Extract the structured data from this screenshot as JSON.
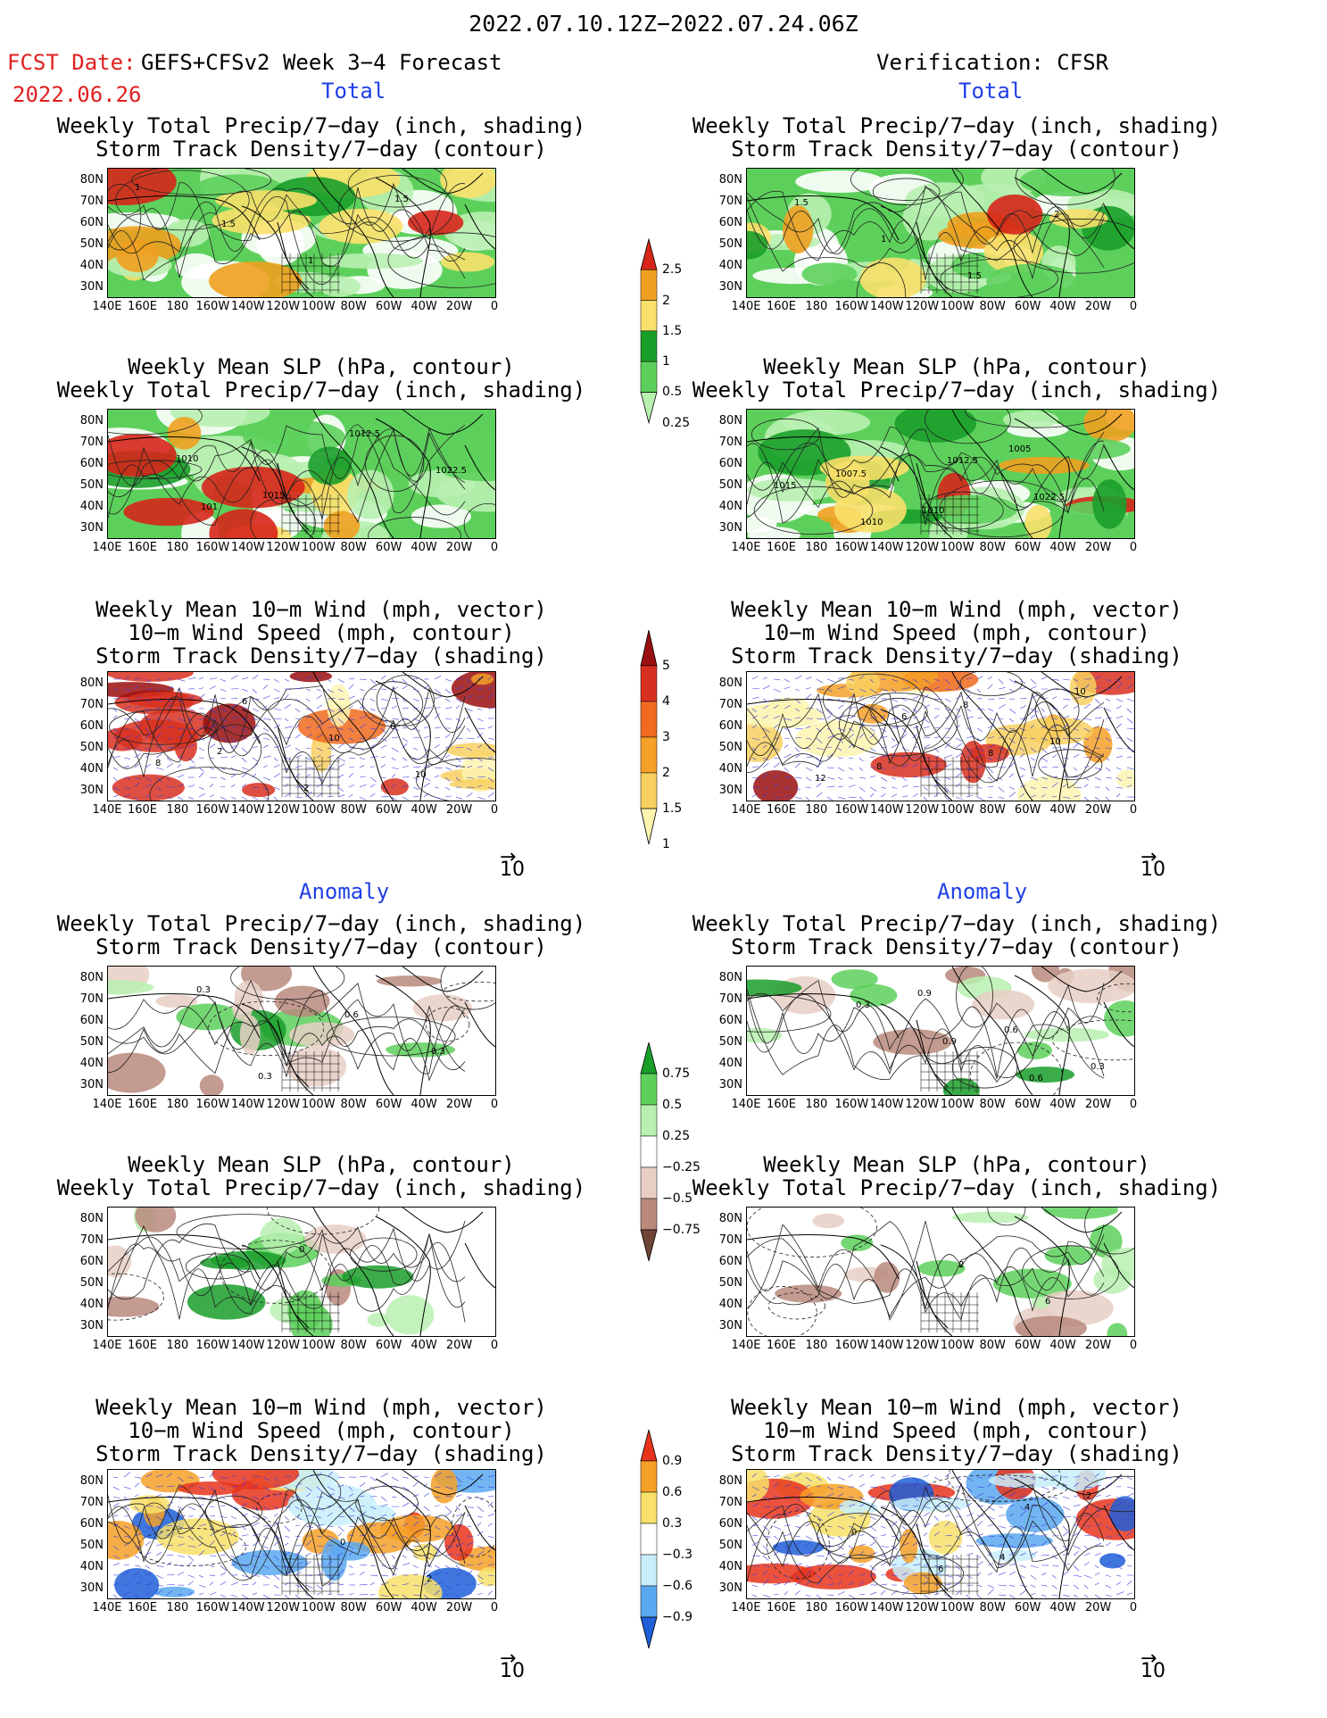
{
  "header": {
    "period": "2022.07.10.12Z−2022.07.24.06Z",
    "fcst_date_label": "FCST Date:",
    "fcst_model": "GEFS+CFSv2 Week 3−4 Forecast",
    "fcst_date": "2022.06.26",
    "verification": "Verification: CFSR"
  },
  "sections": {
    "total": "Total",
    "anomaly": "Anomaly"
  },
  "panel_titles": {
    "precip_storm": "Weekly Total Precip/7−day (inch, shading)\nStorm Track Density/7−day (contour)",
    "slp_precip": "Weekly Mean SLP (hPa, contour)\nWeekly Total Precip/7−day (inch, shading)",
    "wind_storm": "Weekly Mean 10−m Wind (mph, vector)\n10−m Wind Speed (mph, contour)\nStorm Track Density/7−day (shading)"
  },
  "axes": {
    "lat": [
      "80N",
      "70N",
      "60N",
      "50N",
      "40N",
      "30N"
    ],
    "lon": [
      "140E",
      "160E",
      "180",
      "160W",
      "140W",
      "120W",
      "100W",
      "80W",
      "60W",
      "40W",
      "20W",
      "0"
    ]
  },
  "vector_ref": "10",
  "colorbars": {
    "precip_total": {
      "labels": [
        "2.5",
        "2",
        "1.5",
        "1",
        "0.5",
        "0.25"
      ],
      "colors": [
        "#d7251a",
        "#f0a020",
        "#f8e06a",
        "#1a9e2a",
        "#5dd05c",
        "#b8f0b0"
      ]
    },
    "storm_total": {
      "labels": [
        "5",
        "4",
        "3",
        "2",
        "1.5",
        "1"
      ],
      "colors": [
        "#9a0f0f",
        "#d83020",
        "#f06a20",
        "#f5a028",
        "#f8d060",
        "#fdf4b0"
      ]
    },
    "precip_anom": {
      "labels": [
        "0.75",
        "0.5",
        "0.25",
        "−0.25",
        "−0.5",
        "−0.75"
      ],
      "colors": [
        "#1a9e2a",
        "#5dd05c",
        "#b8f0b0",
        "#ffffff",
        "#e8cfc6",
        "#b9897c",
        "#6e4535"
      ]
    },
    "storm_anom": {
      "labels": [
        "0.9",
        "0.6",
        "0.3",
        "−0.3",
        "−0.6",
        "−0.9"
      ],
      "colors": [
        "#e8341c",
        "#f5a028",
        "#f8e06a",
        "#ffffff",
        "#c8eefa",
        "#5aa8f0",
        "#1f5fd8"
      ]
    }
  },
  "contour_labels": {
    "l1": [
      "1",
      "1.5",
      "1",
      "1.5"
    ],
    "r1": [
      "1.5",
      "1",
      "1.5",
      "2"
    ],
    "l2": [
      "1010",
      "1015",
      "1012.5",
      "1022.5",
      "101"
    ],
    "r2": [
      "1007.5",
      "1010",
      "1005",
      "1015",
      "1010",
      "1012.5",
      "1022.5"
    ],
    "l3": [
      "2",
      "2",
      "6",
      "8",
      "6",
      "10",
      "10"
    ],
    "r3": [
      "8",
      "8",
      "10",
      "12",
      "6",
      "8",
      "10"
    ],
    "l4": [
      "0.3",
      "0.6",
      "0.3",
      "0.3"
    ],
    "r4": [
      "0.9",
      "0.6",
      "0.3",
      "0.3",
      "0.9",
      "0.6"
    ],
    "l5": [
      "0"
    ],
    "r5": [
      "2",
      "6"
    ],
    "l6": [
      "0",
      "2"
    ],
    "r6": [
      "4",
      "2",
      "0",
      "6",
      "4"
    ]
  },
  "colors": {
    "fcst_red": "#e02020",
    "section_blue": "#1f3fe6",
    "vector_blue": "#3a3ae0"
  }
}
